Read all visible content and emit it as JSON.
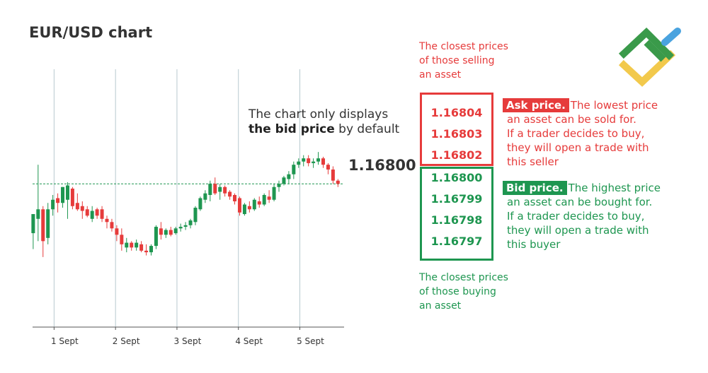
{
  "colors": {
    "up": "#1e9650",
    "down": "#e63b3b",
    "grid": "#b8c9cf",
    "axis": "#555555",
    "text": "#333333"
  },
  "chart_data": {
    "type": "candlestick",
    "title": "EUR/USD chart",
    "x_tick_labels": [
      "1 Sept",
      "2 Sept",
      "3 Sept",
      "4 Sept",
      "5 Sept"
    ],
    "xlim": [
      -0.35,
      4.72
    ],
    "ylim": [
      1.1635,
      1.1716
    ],
    "gridlines": "vertical",
    "reference_line": {
      "value": 1.168,
      "label": "1.16800",
      "style": "dashed"
    },
    "candles": [
      {
        "t": -0.34,
        "o": 1.16645,
        "h": 1.167,
        "l": 1.16595,
        "c": 1.16705
      },
      {
        "t": -0.26,
        "o": 1.1669,
        "h": 1.1686,
        "l": 1.1662,
        "c": 1.1672
      },
      {
        "t": -0.18,
        "o": 1.1672,
        "h": 1.1673,
        "l": 1.1657,
        "c": 1.1662
      },
      {
        "t": -0.1,
        "o": 1.1663,
        "h": 1.1674,
        "l": 1.1661,
        "c": 1.1672
      },
      {
        "t": -0.02,
        "o": 1.1672,
        "h": 1.16765,
        "l": 1.167,
        "c": 1.1675
      },
      {
        "t": 0.06,
        "o": 1.16755,
        "h": 1.1677,
        "l": 1.1671,
        "c": 1.1674
      },
      {
        "t": 0.14,
        "o": 1.1674,
        "h": 1.1679,
        "l": 1.16725,
        "c": 1.1679
      },
      {
        "t": 0.22,
        "o": 1.1675,
        "h": 1.16805,
        "l": 1.1669,
        "c": 1.16795
      },
      {
        "t": 0.3,
        "o": 1.16785,
        "h": 1.1679,
        "l": 1.1672,
        "c": 1.1673
      },
      {
        "t": 0.38,
        "o": 1.1674,
        "h": 1.1677,
        "l": 1.16715,
        "c": 1.1672
      },
      {
        "t": 0.46,
        "o": 1.1673,
        "h": 1.16745,
        "l": 1.1669,
        "c": 1.16715
      },
      {
        "t": 0.54,
        "o": 1.1672,
        "h": 1.1673,
        "l": 1.16695,
        "c": 1.167
      },
      {
        "t": 0.62,
        "o": 1.1669,
        "h": 1.1673,
        "l": 1.1668,
        "c": 1.16715
      },
      {
        "t": 0.7,
        "o": 1.1672,
        "h": 1.16725,
        "l": 1.1669,
        "c": 1.167
      },
      {
        "t": 0.78,
        "o": 1.1672,
        "h": 1.1673,
        "l": 1.1668,
        "c": 1.1669
      },
      {
        "t": 0.86,
        "o": 1.1669,
        "h": 1.167,
        "l": 1.1666,
        "c": 1.1668
      },
      {
        "t": 0.94,
        "o": 1.1668,
        "h": 1.1669,
        "l": 1.1665,
        "c": 1.1666
      },
      {
        "t": 1.02,
        "o": 1.1666,
        "h": 1.1667,
        "l": 1.1662,
        "c": 1.1664
      },
      {
        "t": 1.1,
        "o": 1.1664,
        "h": 1.1666,
        "l": 1.1659,
        "c": 1.1661
      },
      {
        "t": 1.18,
        "o": 1.166,
        "h": 1.1663,
        "l": 1.16585,
        "c": 1.16615
      },
      {
        "t": 1.26,
        "o": 1.16615,
        "h": 1.1662,
        "l": 1.1659,
        "c": 1.166
      },
      {
        "t": 1.34,
        "o": 1.166,
        "h": 1.16625,
        "l": 1.1659,
        "c": 1.16615
      },
      {
        "t": 1.42,
        "o": 1.1661,
        "h": 1.1662,
        "l": 1.16585,
        "c": 1.1659
      },
      {
        "t": 1.5,
        "o": 1.1659,
        "h": 1.1661,
        "l": 1.16575,
        "c": 1.16585
      },
      {
        "t": 1.58,
        "o": 1.16585,
        "h": 1.1661,
        "l": 1.16575,
        "c": 1.16605
      },
      {
        "t": 1.66,
        "o": 1.16605,
        "h": 1.1667,
        "l": 1.16595,
        "c": 1.16665
      },
      {
        "t": 1.74,
        "o": 1.1666,
        "h": 1.1668,
        "l": 1.16625,
        "c": 1.1664
      },
      {
        "t": 1.82,
        "o": 1.1664,
        "h": 1.1666,
        "l": 1.1663,
        "c": 1.16655
      },
      {
        "t": 1.9,
        "o": 1.16655,
        "h": 1.16665,
        "l": 1.16635,
        "c": 1.1664
      },
      {
        "t": 1.98,
        "o": 1.16645,
        "h": 1.16665,
        "l": 1.1664,
        "c": 1.1666
      },
      {
        "t": 2.06,
        "o": 1.1666,
        "h": 1.16675,
        "l": 1.1665,
        "c": 1.16665
      },
      {
        "t": 2.14,
        "o": 1.16665,
        "h": 1.1668,
        "l": 1.16655,
        "c": 1.1667
      },
      {
        "t": 2.22,
        "o": 1.1667,
        "h": 1.1669,
        "l": 1.1666,
        "c": 1.16685
      },
      {
        "t": 2.3,
        "o": 1.1668,
        "h": 1.1673,
        "l": 1.1667,
        "c": 1.16725
      },
      {
        "t": 2.38,
        "o": 1.1672,
        "h": 1.1676,
        "l": 1.16715,
        "c": 1.16755
      },
      {
        "t": 2.46,
        "o": 1.1675,
        "h": 1.1678,
        "l": 1.1674,
        "c": 1.1677
      },
      {
        "t": 2.54,
        "o": 1.16765,
        "h": 1.1681,
        "l": 1.16745,
        "c": 1.168
      },
      {
        "t": 2.62,
        "o": 1.168,
        "h": 1.1682,
        "l": 1.16765,
        "c": 1.1677
      },
      {
        "t": 2.7,
        "o": 1.16775,
        "h": 1.168,
        "l": 1.1675,
        "c": 1.1679
      },
      {
        "t": 2.78,
        "o": 1.1679,
        "h": 1.16795,
        "l": 1.1676,
        "c": 1.1677
      },
      {
        "t": 2.86,
        "o": 1.16775,
        "h": 1.1678,
        "l": 1.1675,
        "c": 1.1676
      },
      {
        "t": 2.94,
        "o": 1.16765,
        "h": 1.1677,
        "l": 1.16735,
        "c": 1.16745
      },
      {
        "t": 3.02,
        "o": 1.16755,
        "h": 1.1676,
        "l": 1.167,
        "c": 1.1671
      },
      {
        "t": 3.1,
        "o": 1.16705,
        "h": 1.1674,
        "l": 1.167,
        "c": 1.16735
      },
      {
        "t": 3.18,
        "o": 1.1673,
        "h": 1.16745,
        "l": 1.1671,
        "c": 1.1672
      },
      {
        "t": 3.26,
        "o": 1.1672,
        "h": 1.16755,
        "l": 1.16715,
        "c": 1.1675
      },
      {
        "t": 3.34,
        "o": 1.16745,
        "h": 1.1676,
        "l": 1.16725,
        "c": 1.16735
      },
      {
        "t": 3.42,
        "o": 1.16735,
        "h": 1.1677,
        "l": 1.1673,
        "c": 1.16765
      },
      {
        "t": 3.5,
        "o": 1.1676,
        "h": 1.1678,
        "l": 1.1674,
        "c": 1.1675
      },
      {
        "t": 3.58,
        "o": 1.1675,
        "h": 1.168,
        "l": 1.16745,
        "c": 1.1679
      },
      {
        "t": 3.66,
        "o": 1.1679,
        "h": 1.1681,
        "l": 1.16775,
        "c": 1.168
      },
      {
        "t": 3.74,
        "o": 1.168,
        "h": 1.16825,
        "l": 1.16795,
        "c": 1.1682
      },
      {
        "t": 3.82,
        "o": 1.16815,
        "h": 1.1684,
        "l": 1.168,
        "c": 1.1683
      },
      {
        "t": 3.9,
        "o": 1.1683,
        "h": 1.1687,
        "l": 1.16815,
        "c": 1.1686
      },
      {
        "t": 3.98,
        "o": 1.1686,
        "h": 1.1688,
        "l": 1.1685,
        "c": 1.1687
      },
      {
        "t": 4.06,
        "o": 1.1687,
        "h": 1.1689,
        "l": 1.16855,
        "c": 1.1688
      },
      {
        "t": 4.14,
        "o": 1.1688,
        "h": 1.1689,
        "l": 1.16855,
        "c": 1.16865
      },
      {
        "t": 4.22,
        "o": 1.16865,
        "h": 1.1688,
        "l": 1.1685,
        "c": 1.1687
      },
      {
        "t": 4.3,
        "o": 1.1687,
        "h": 1.169,
        "l": 1.1686,
        "c": 1.1688
      },
      {
        "t": 4.38,
        "o": 1.1688,
        "h": 1.16885,
        "l": 1.1685,
        "c": 1.1686
      },
      {
        "t": 4.46,
        "o": 1.1686,
        "h": 1.16865,
        "l": 1.1683,
        "c": 1.16845
      },
      {
        "t": 4.54,
        "o": 1.16845,
        "h": 1.16855,
        "l": 1.168,
        "c": 1.1681
      },
      {
        "t": 4.62,
        "o": 1.1681,
        "h": 1.16815,
        "l": 1.1679,
        "c": 1.168
      }
    ]
  },
  "annotation": {
    "line1": "The chart only displays",
    "bold": "the bid price",
    "rest": " by default"
  },
  "last_price": "1.16800",
  "sellers_caption": [
    "The closest prices",
    "of those selling",
    "an asset"
  ],
  "buyers_caption": [
    "The closest prices",
    "of those buying",
    "an asset"
  ],
  "ask": {
    "prices": [
      "1.16804",
      "1.16803",
      "1.16802"
    ],
    "label": "Ask price.",
    "lines": [
      "The lowest price",
      "an asset can be sold for.",
      "If a trader decides to buy,",
      "they will open a trade with",
      "this seller"
    ]
  },
  "bid": {
    "prices": [
      "1.16800",
      "1.16799",
      "1.16798",
      "1.16797"
    ],
    "label": "Bid price.",
    "lines": [
      "The highest price",
      "an asset can be bought for.",
      "If a trader decides to buy,",
      "they will open a trade with",
      "this buyer"
    ]
  },
  "logo": {
    "icon": "brand-logo-icon",
    "colors": [
      "#3a9a4a",
      "#f2c94c",
      "#4aa3df"
    ]
  }
}
